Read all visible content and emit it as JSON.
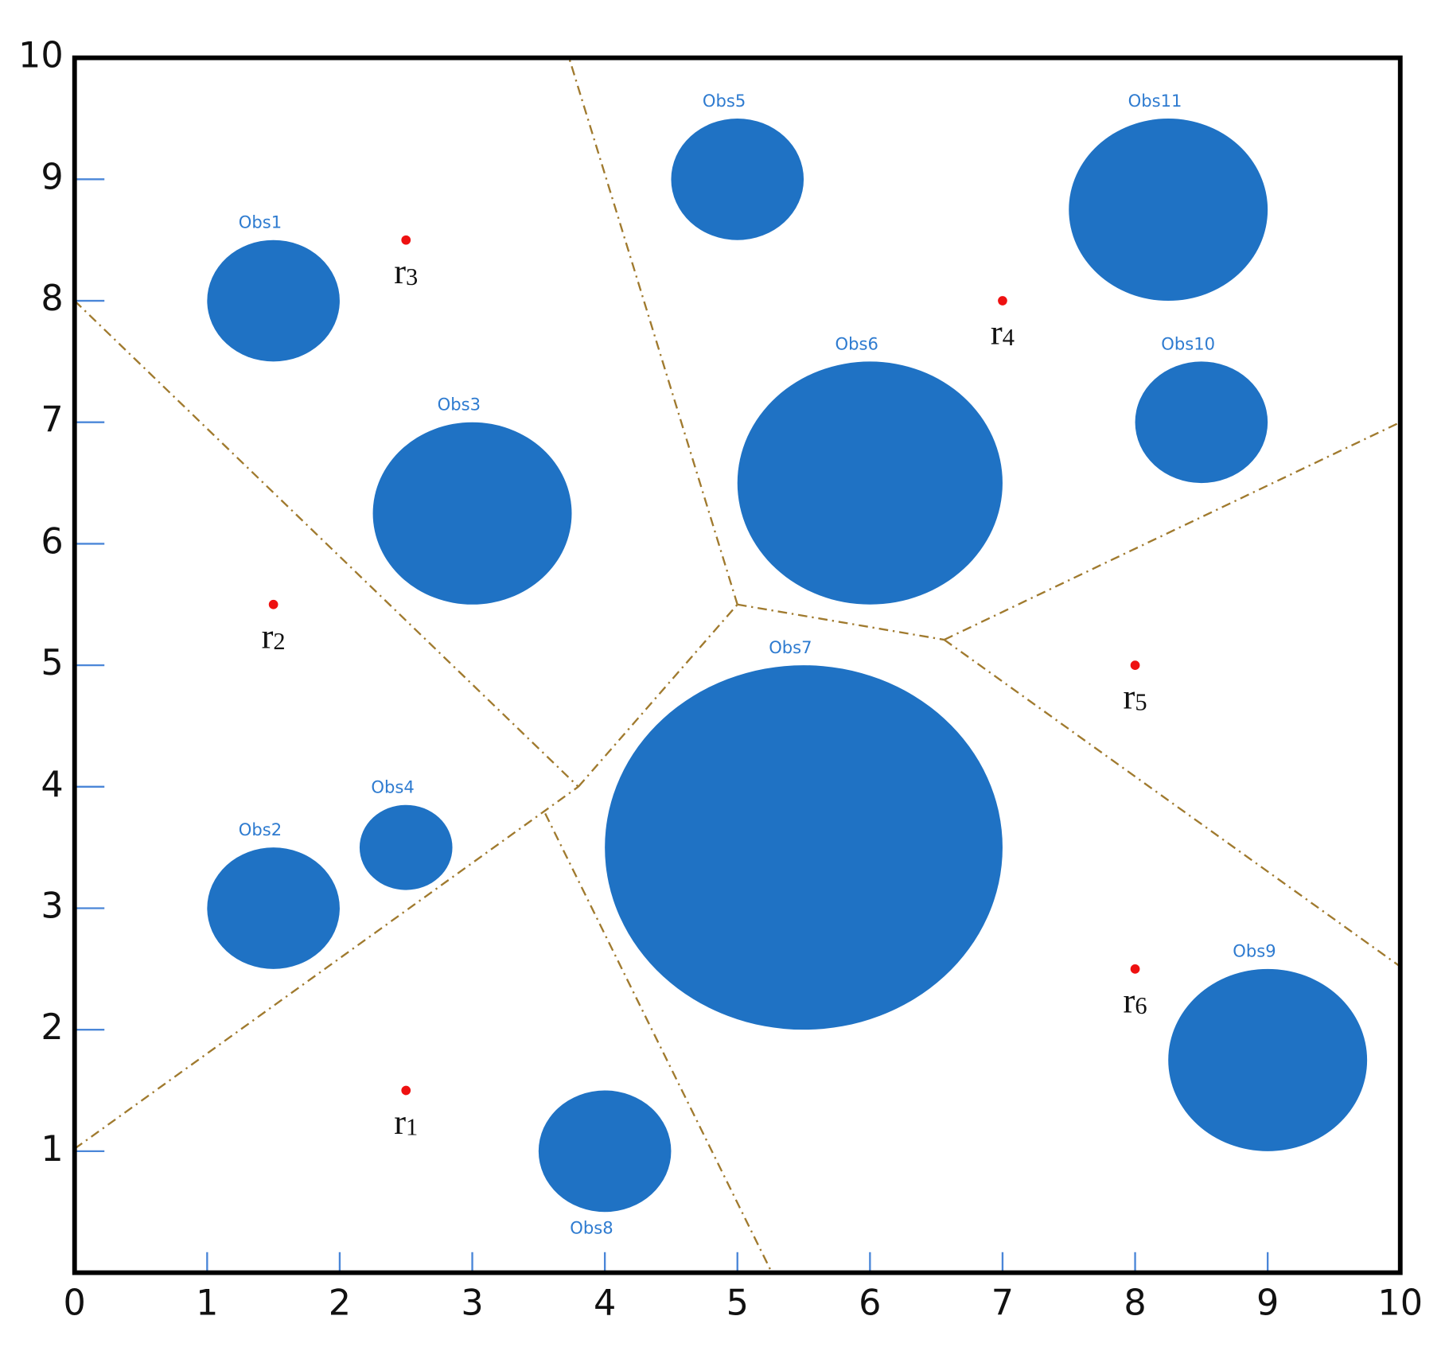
{
  "chart_data": {
    "type": "scatter",
    "xlim": [
      0,
      10
    ],
    "ylim": [
      0,
      10
    ],
    "xticks": [
      0,
      1,
      2,
      3,
      4,
      5,
      6,
      7,
      8,
      9,
      10
    ],
    "yticks": [
      1,
      2,
      3,
      4,
      5,
      6,
      7,
      8,
      9,
      10
    ],
    "obstacle_color": "#1f72c4",
    "obstacle_label_color": "#2e7bd0",
    "robot_color": "#ee1111",
    "boundary_color": "#a07a2e",
    "obstacles": [
      {
        "name": "Obs1",
        "x": 1.5,
        "y": 8,
        "r": 0.5,
        "label_side": "top"
      },
      {
        "name": "Obs2",
        "x": 1.5,
        "y": 3,
        "r": 0.5,
        "label_side": "top"
      },
      {
        "name": "Obs3",
        "x": 3,
        "y": 6.25,
        "r": 0.75,
        "label_side": "top"
      },
      {
        "name": "Obs4",
        "x": 2.5,
        "y": 3.5,
        "r": 0.35,
        "label_side": "top"
      },
      {
        "name": "Obs5",
        "x": 5,
        "y": 9,
        "r": 0.5,
        "label_side": "top"
      },
      {
        "name": "Obs6",
        "x": 6,
        "y": 6.5,
        "r": 1,
        "label_side": "top"
      },
      {
        "name": "Obs7",
        "x": 5.5,
        "y": 3.5,
        "r": 1.5,
        "label_side": "top"
      },
      {
        "name": "Obs8",
        "x": 4,
        "y": 1,
        "r": 0.5,
        "label_side": "bottom"
      },
      {
        "name": "Obs9",
        "x": 9,
        "y": 1.75,
        "r": 0.75,
        "label_side": "top"
      },
      {
        "name": "Obs10",
        "x": 8.5,
        "y": 7,
        "r": 0.5,
        "label_side": "top"
      },
      {
        "name": "Obs11",
        "x": 8.25,
        "y": 8.75,
        "r": 0.75,
        "label_side": "top"
      }
    ],
    "robots": [
      {
        "name": "r",
        "sub": "1",
        "x": 2.5,
        "y": 1.5
      },
      {
        "name": "r",
        "sub": "2",
        "x": 1.5,
        "y": 5.5
      },
      {
        "name": "r",
        "sub": "3",
        "x": 2.5,
        "y": 8.5
      },
      {
        "name": "r",
        "sub": "4",
        "x": 7,
        "y": 8
      },
      {
        "name": "r",
        "sub": "5",
        "x": 8,
        "y": 5
      },
      {
        "name": "r",
        "sub": "6",
        "x": 8,
        "y": 2.5
      }
    ],
    "boundaries": [
      {
        "x": [
          0,
          3.8
        ],
        "y": [
          8,
          4
        ]
      },
      {
        "x": [
          0,
          3.8
        ],
        "y": [
          1.02,
          4
        ]
      },
      {
        "x": [
          3.8,
          5
        ],
        "y": [
          4,
          5.5
        ]
      },
      {
        "x": [
          5,
          3.73
        ],
        "y": [
          5.5,
          10
        ]
      },
      {
        "x": [
          5,
          6.56
        ],
        "y": [
          5.5,
          5.21
        ]
      },
      {
        "x": [
          6.56,
          10
        ],
        "y": [
          5.21,
          7
        ]
      },
      {
        "x": [
          6.56,
          10
        ],
        "y": [
          5.21,
          2.52
        ]
      },
      {
        "x": [
          3.55,
          5.26
        ],
        "y": [
          3.78,
          0
        ]
      }
    ]
  }
}
